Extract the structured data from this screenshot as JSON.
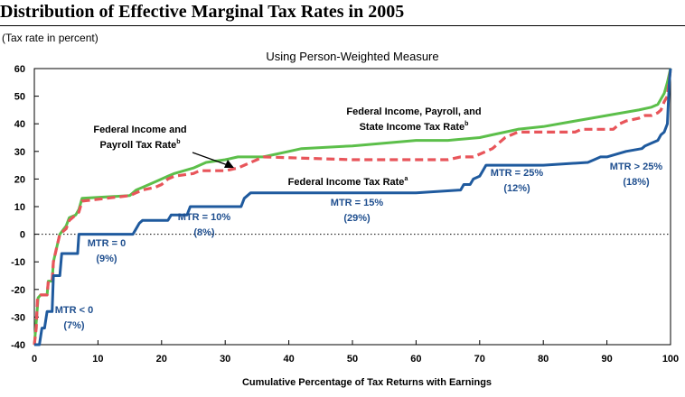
{
  "header": {
    "title": "Distribution of Effective Marginal Tax Rates in 2005",
    "subtitle": "(Tax rate in percent)"
  },
  "chart_data": {
    "type": "line",
    "title": "Using Person-Weighted Measure",
    "xlabel": "Cumulative Percentage of Tax Returns with Earnings",
    "ylabel": "",
    "xlim": [
      0,
      100
    ],
    "ylim": [
      -40,
      60
    ],
    "xticks": [
      0,
      10,
      20,
      30,
      40,
      50,
      60,
      70,
      80,
      90,
      100
    ],
    "yticks": [
      -40,
      -30,
      -20,
      -10,
      0,
      10,
      20,
      30,
      40,
      50,
      60
    ],
    "zero_line": "dotted",
    "grid": false,
    "colors": {
      "federal_income": "#1f5a9e",
      "federal_income_payroll": "#e8555a",
      "federal_income_payroll_state": "#5cbf4a",
      "annotation_text": "#1f4f8f"
    },
    "series": [
      {
        "name": "Federal Income Tax Rate",
        "label_sup": "a",
        "style": "solid",
        "x": [
          0,
          0.8,
          1.2,
          1.6,
          2.0,
          2.8,
          3.0,
          4.0,
          4.3,
          5.5,
          6.8,
          7.0,
          15.5,
          16.5,
          17.0,
          21.0,
          21.5,
          24.0,
          24.5,
          32.5,
          33.0,
          34.0,
          60.0,
          67.0,
          67.5,
          68.5,
          69.0,
          70.0,
          70.5,
          71.0,
          75.0,
          75.5,
          80.0,
          87.0,
          88.0,
          89.0,
          90.0,
          93.0,
          95.5,
          96.0,
          97.0,
          98.0,
          98.5,
          99.0,
          99.5,
          99.8,
          100
        ],
        "y": [
          -40,
          -40,
          -34,
          -34,
          -28,
          -28,
          -15,
          -15,
          -7,
          -7,
          -7,
          0,
          0,
          4,
          5,
          5,
          7,
          7,
          10,
          10,
          13,
          15,
          15,
          16,
          18,
          18,
          20,
          21,
          23,
          25,
          25,
          25,
          25,
          26,
          27,
          28,
          28,
          30,
          31,
          32,
          33,
          34,
          36,
          37,
          40,
          55,
          60
        ]
      },
      {
        "name": "Federal Income and Payroll Tax Rate",
        "label_sup": "b",
        "style": "dashed",
        "x": [
          0,
          0.3,
          0.5,
          1.0,
          2.0,
          2.2,
          2.8,
          3.0,
          3.5,
          4.0,
          5.0,
          5.5,
          6.5,
          7.0,
          7.5,
          15.0,
          16.0,
          17.0,
          19.0,
          20.0,
          21.0,
          22.0,
          25.0,
          26.0,
          27.0,
          30.0,
          32.0,
          33.0,
          34.0,
          35.0,
          36.0,
          50.0,
          60.0,
          65.0,
          67.0,
          68.0,
          69.0,
          70.0,
          71.0,
          72.0,
          73.0,
          74.0,
          75.0,
          76.0,
          85.0,
          86.0,
          88.0,
          91.0,
          92.0,
          93.0,
          95.0,
          96.0,
          97.0,
          98.0,
          98.5,
          99.0,
          99.5,
          100
        ],
        "y": [
          -40,
          -34,
          -23,
          -22,
          -22,
          -17,
          -17,
          -10,
          -5,
          0,
          2,
          5,
          7,
          8,
          12,
          14,
          15,
          16,
          17,
          18,
          20,
          21,
          22,
          23,
          23,
          23,
          24,
          25,
          26,
          27,
          28,
          27,
          27,
          27,
          28,
          28,
          28,
          29,
          30,
          31,
          33,
          35,
          36,
          37,
          37,
          38,
          38,
          38,
          40,
          41,
          42,
          43,
          43,
          44,
          45,
          48,
          50,
          60
        ]
      },
      {
        "name": "Federal Income, Payroll, and State Income Tax Rate",
        "label_sup": "b",
        "style": "solid",
        "x": [
          0,
          0.3,
          0.6,
          1.0,
          2.0,
          2.2,
          2.8,
          3.0,
          3.5,
          4.0,
          5.0,
          5.5,
          6.5,
          7.0,
          7.5,
          15.0,
          16.0,
          17.0,
          19.0,
          20.0,
          21.0,
          22.0,
          25.0,
          26.0,
          27.0,
          30.0,
          32.0,
          33.0,
          36.0,
          40.0,
          42.0,
          50.0,
          60.0,
          65.0,
          70.0,
          72.0,
          74.0,
          76.0,
          80.0,
          85.0,
          90.0,
          95.0,
          97.0,
          98.0,
          98.5,
          99.0,
          99.5,
          100
        ],
        "y": [
          -40,
          -32,
          -23,
          -22,
          -22,
          -17,
          -17,
          -10,
          -5,
          0,
          3,
          6,
          7,
          9,
          13,
          14,
          16,
          17,
          19,
          20,
          21,
          22,
          24,
          25,
          26,
          27,
          28,
          28,
          28,
          30,
          31,
          32,
          34,
          34,
          35,
          36,
          37,
          38,
          39,
          41,
          43,
          45,
          46,
          47,
          49,
          51,
          55,
          60
        ]
      }
    ],
    "series_labels": [
      {
        "lines": [
          "Federal Income, Payroll, and",
          "State Income Tax Rate"
        ],
        "sup": "b"
      },
      {
        "lines": [
          "Federal Income and",
          "Payroll Tax Rate"
        ],
        "sup": "b"
      },
      {
        "lines": [
          "Federal Income Tax Rate"
        ],
        "sup": "a"
      }
    ],
    "annotations": [
      {
        "lines": [
          "MTR < 0",
          "(7%)"
        ]
      },
      {
        "lines": [
          "MTR = 0",
          "(9%)"
        ]
      },
      {
        "lines": [
          "MTR = 10%",
          "(8%)"
        ]
      },
      {
        "lines": [
          "MTR = 15%",
          "(29%)"
        ]
      },
      {
        "lines": [
          "MTR = 25%",
          "(12%)"
        ]
      },
      {
        "lines": [
          "MTR > 25%",
          "(18%)"
        ]
      }
    ]
  }
}
